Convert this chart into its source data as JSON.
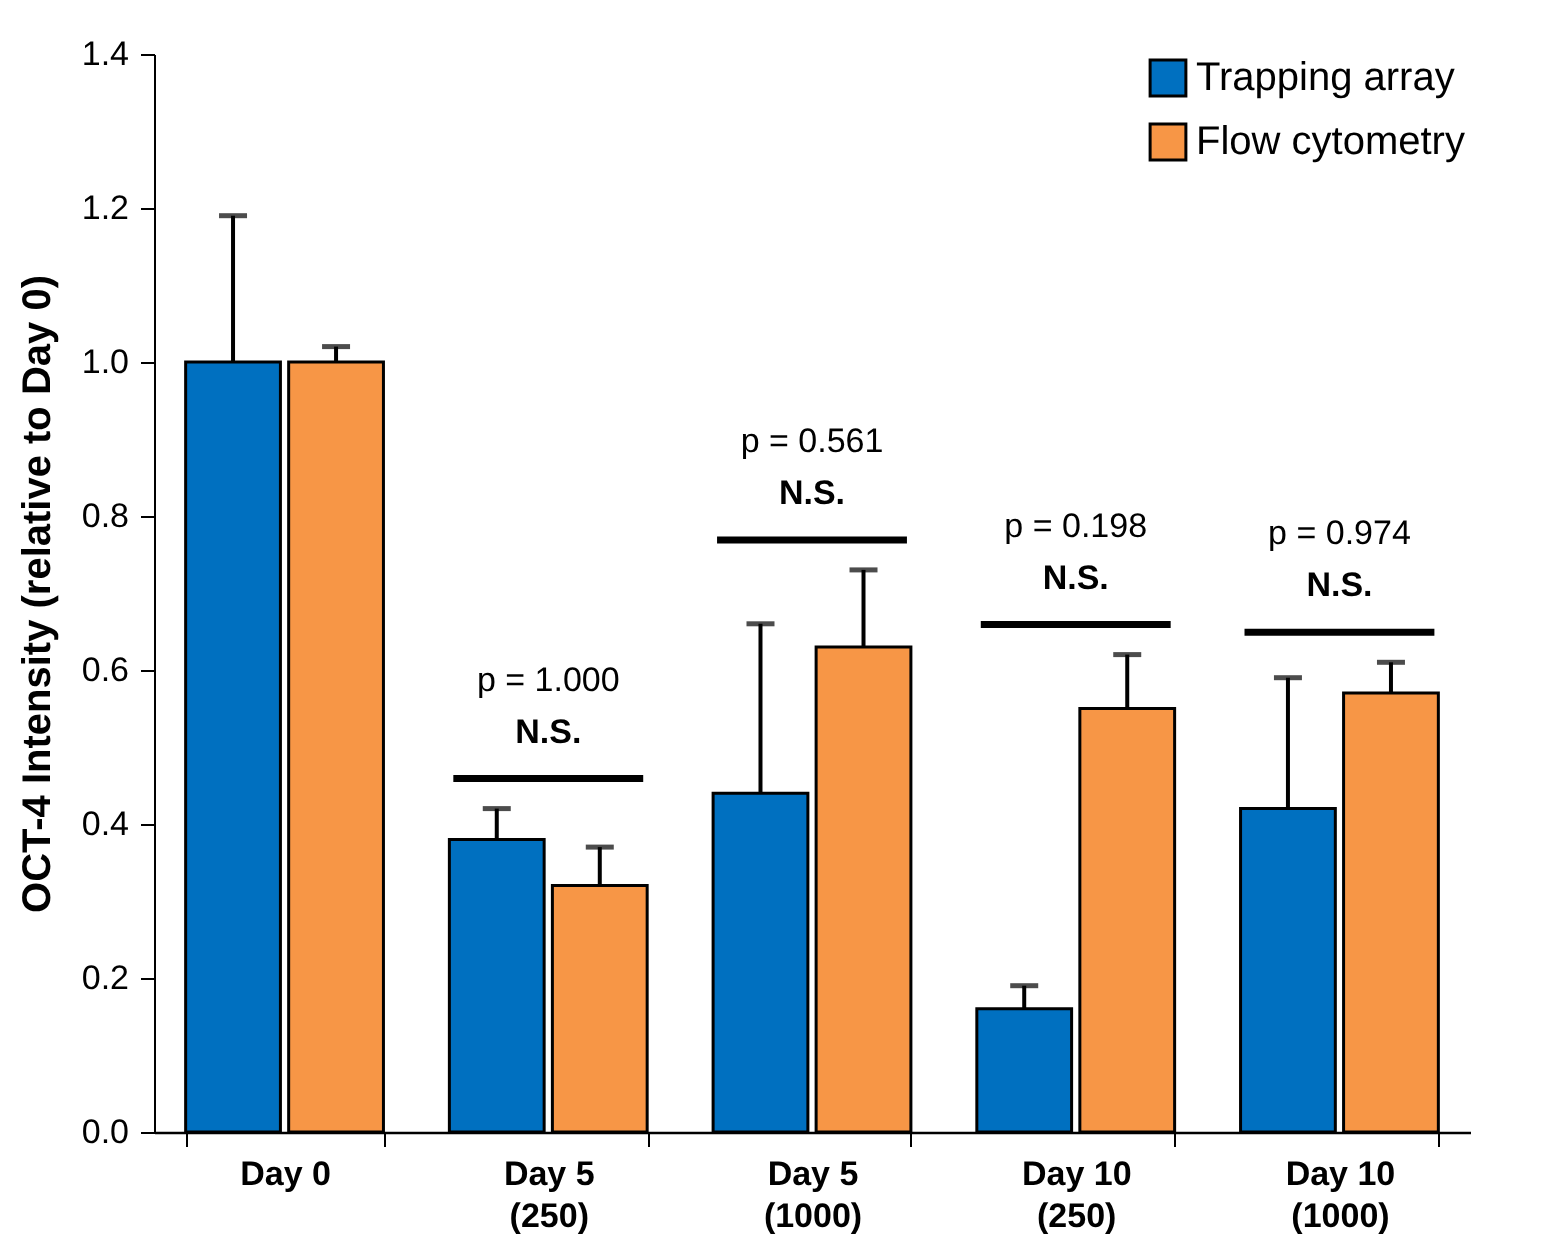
{
  "chart_data": {
    "type": "bar",
    "ylabel": "OCT-4 Intensity (relative to Day 0)",
    "categories": [
      "Day 0",
      "Day 5\n(250)",
      "Day 5\n(1000)",
      "Day 10\n(250)",
      "Day 10\n(1000)"
    ],
    "series": [
      {
        "name": "Trapping array",
        "color": "#0070c0",
        "values": [
          1.0,
          0.38,
          0.44,
          0.16,
          0.42
        ],
        "errors": [
          [
            1.0,
            1.19
          ],
          [
            0.38,
            0.42
          ],
          [
            0.44,
            0.66
          ],
          [
            0.16,
            0.19
          ],
          [
            0.42,
            0.59
          ]
        ]
      },
      {
        "name": "Flow cytometry",
        "color": "#f79646",
        "values": [
          1.0,
          0.32,
          0.63,
          0.55,
          0.57
        ],
        "errors": [
          [
            1.0,
            1.02
          ],
          [
            0.32,
            0.37
          ],
          [
            0.63,
            0.73
          ],
          [
            0.55,
            0.62
          ],
          [
            0.57,
            0.61
          ]
        ]
      }
    ],
    "ylim": [
      0,
      1.4
    ],
    "yticks": [
      {
        "value": 0,
        "label": "0.0"
      },
      {
        "value": 0.2,
        "label": "0.2"
      },
      {
        "value": 0.4,
        "label": "0.4"
      },
      {
        "value": 0.6,
        "label": "0.6"
      },
      {
        "value": 0.8,
        "label": "0.8"
      },
      {
        "value": 1,
        "label": "1.0"
      },
      {
        "value": 1.2,
        "label": "1.2"
      },
      {
        "value": 1.4,
        "label": "1.4"
      }
    ],
    "legend": "top right",
    "annotations": [
      "p = 1.000",
      "N.S.",
      "p = 0.561",
      "N.S.",
      "p = 0.198",
      "N.S.",
      "p = 0.974",
      "N.S."
    ]
  }
}
